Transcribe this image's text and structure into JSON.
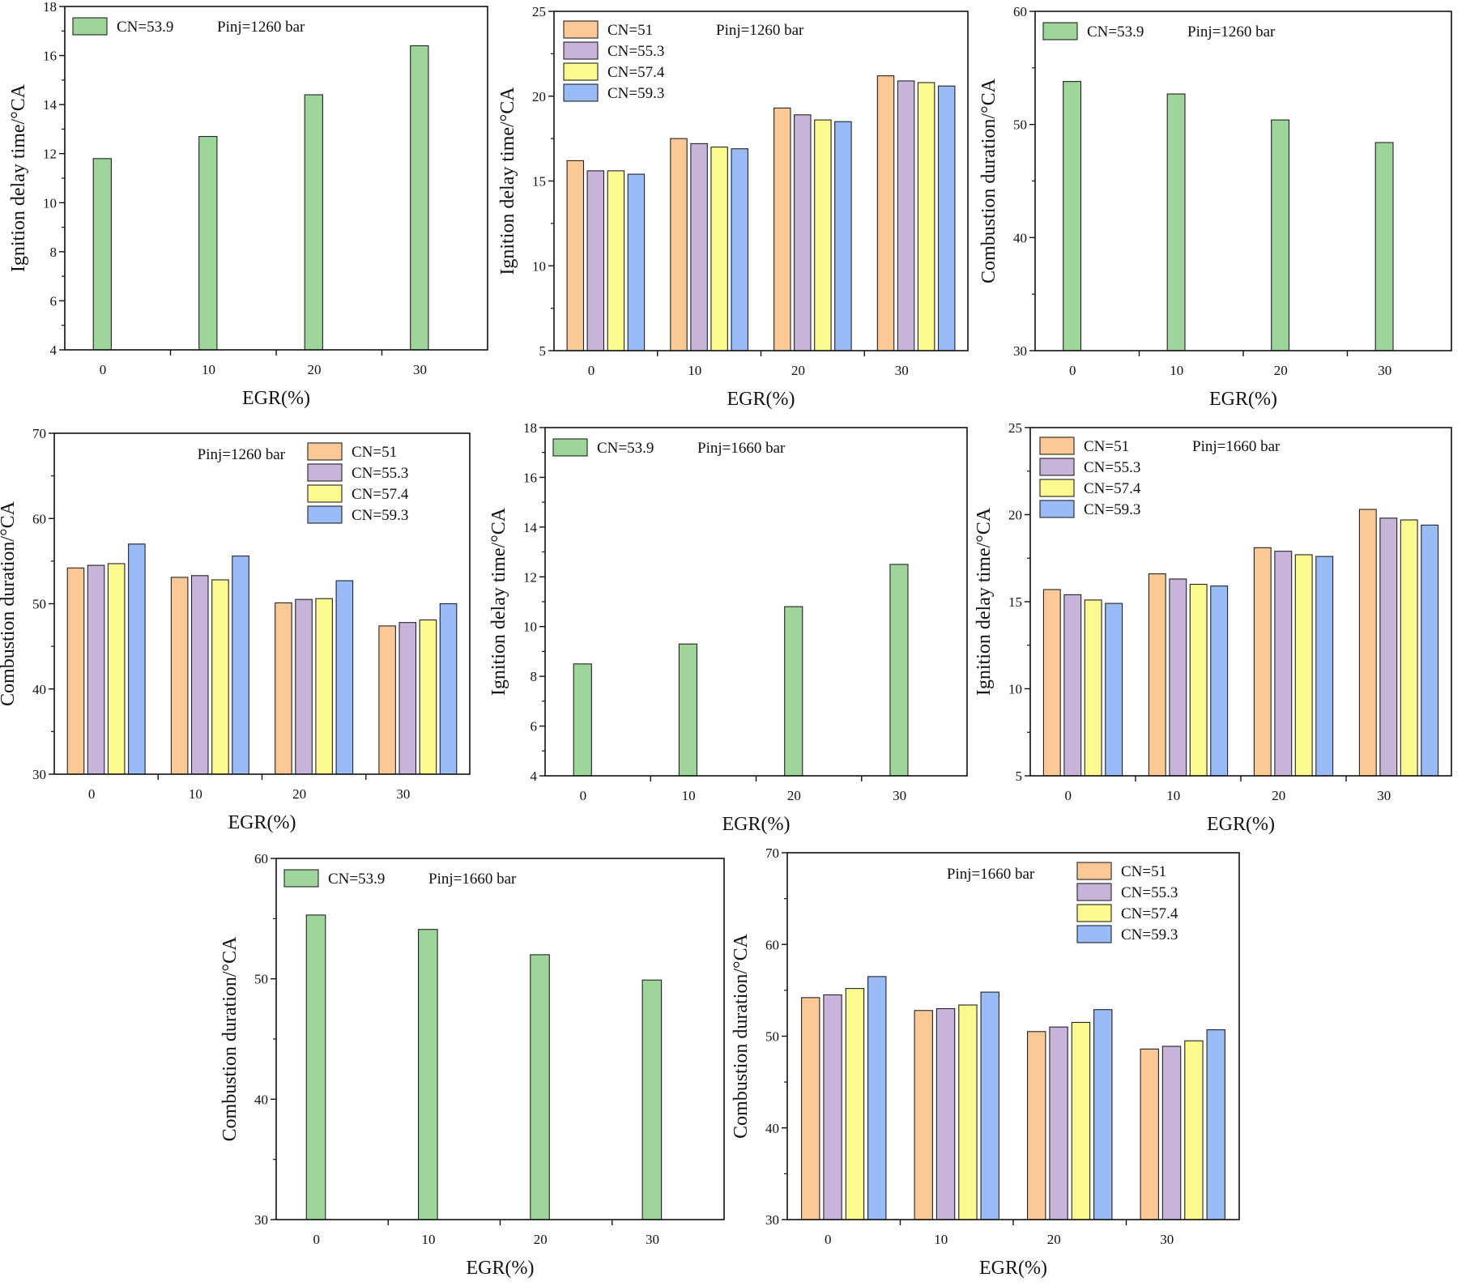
{
  "figure": {
    "description_free": true,
    "colors": {
      "CN=51": "#fcc895",
      "CN=55.3": "#c8b4d9",
      "CN=57.4": "#fbf98f",
      "CN=59.3": "#9abcf6",
      "CN=53.9": "#9dd59a",
      "stroke": "#222222"
    }
  },
  "chart_data": [
    {
      "id": "a",
      "type": "bar",
      "title": "",
      "xlabel": "EGR(%)",
      "ylabel": "Ignition delay time/°CA",
      "categories": [
        "0",
        "10",
        "20",
        "30"
      ],
      "ylim": [
        4,
        18
      ],
      "yticks": [
        4,
        6,
        8,
        10,
        12,
        14,
        16,
        18
      ],
      "series": [
        {
          "name": "CN=53.9",
          "values": [
            11.8,
            12.7,
            14.4,
            16.4
          ]
        }
      ],
      "annotation": "Pinj=1260 bar",
      "legend": "top-left",
      "grid": false
    },
    {
      "id": "b",
      "type": "bar",
      "title": "",
      "xlabel": "EGR(%)",
      "ylabel": "Ignition delay time/°CA",
      "categories": [
        "0",
        "10",
        "20",
        "30"
      ],
      "ylim": [
        5,
        25
      ],
      "yticks": [
        5,
        10,
        15,
        20,
        25
      ],
      "series": [
        {
          "name": "CN=51",
          "values": [
            16.2,
            17.5,
            19.3,
            21.2
          ]
        },
        {
          "name": "CN=55.3",
          "values": [
            15.6,
            17.2,
            18.9,
            20.9
          ]
        },
        {
          "name": "CN=57.4",
          "values": [
            15.6,
            17.0,
            18.6,
            20.8
          ]
        },
        {
          "name": "CN=59.3",
          "values": [
            15.4,
            16.9,
            18.5,
            20.6
          ]
        }
      ],
      "annotation": "Pinj=1260 bar",
      "legend": "top-left",
      "grid": false
    },
    {
      "id": "c",
      "type": "bar",
      "title": "",
      "xlabel": "EGR(%)",
      "ylabel": "Combustion duration/°CA",
      "categories": [
        "0",
        "10",
        "20",
        "30"
      ],
      "ylim": [
        30,
        60
      ],
      "yticks": [
        30,
        40,
        50,
        60
      ],
      "series": [
        {
          "name": "CN=53.9",
          "values": [
            53.8,
            52.7,
            50.4,
            48.4
          ]
        }
      ],
      "annotation": "Pinj=1260 bar",
      "legend": "top-left",
      "grid": false
    },
    {
      "id": "d",
      "type": "bar",
      "title": "",
      "xlabel": "EGR(%)",
      "ylabel": "Combustion duration/°CA",
      "categories": [
        "0",
        "10",
        "20",
        "30"
      ],
      "ylim": [
        30,
        70
      ],
      "yticks": [
        30,
        40,
        50,
        60,
        70
      ],
      "series": [
        {
          "name": "CN=51",
          "values": [
            54.2,
            53.1,
            50.1,
            47.4
          ]
        },
        {
          "name": "CN=55.3",
          "values": [
            54.5,
            53.3,
            50.5,
            47.8
          ]
        },
        {
          "name": "CN=57.4",
          "values": [
            54.7,
            52.8,
            50.6,
            48.1
          ]
        },
        {
          "name": "CN=59.3",
          "values": [
            57.0,
            55.6,
            52.7,
            50.0
          ]
        }
      ],
      "annotation": "Pinj=1260 bar",
      "legend": "top-right",
      "grid": false
    },
    {
      "id": "e",
      "type": "bar",
      "title": "",
      "xlabel": "EGR(%)",
      "ylabel": "Ignition delay time/°CA",
      "categories": [
        "0",
        "10",
        "20",
        "30"
      ],
      "ylim": [
        4,
        18
      ],
      "yticks": [
        4,
        6,
        8,
        10,
        12,
        14,
        16,
        18
      ],
      "series": [
        {
          "name": "CN=53.9",
          "values": [
            8.5,
            9.3,
            10.8,
            12.5
          ]
        }
      ],
      "annotation": "Pinj=1660 bar",
      "legend": "top-left",
      "grid": false
    },
    {
      "id": "f",
      "type": "bar",
      "title": "",
      "xlabel": "EGR(%)",
      "ylabel": "Ignition delay time/°CA",
      "categories": [
        "0",
        "10",
        "20",
        "30"
      ],
      "ylim": [
        5,
        25
      ],
      "yticks": [
        5,
        10,
        15,
        20,
        25
      ],
      "series": [
        {
          "name": "CN=51",
          "values": [
            15.7,
            16.6,
            18.1,
            20.3
          ]
        },
        {
          "name": "CN=55.3",
          "values": [
            15.4,
            16.3,
            17.9,
            19.8
          ]
        },
        {
          "name": "CN=57.4",
          "values": [
            15.1,
            16.0,
            17.7,
            19.7
          ]
        },
        {
          "name": "CN=59.3",
          "values": [
            14.9,
            15.9,
            17.6,
            19.4
          ]
        }
      ],
      "annotation": "Pinj=1660 bar",
      "legend": "top-left",
      "grid": false
    },
    {
      "id": "g",
      "type": "bar",
      "title": "",
      "xlabel": "EGR(%)",
      "ylabel": "Combustion duration/°CA",
      "categories": [
        "0",
        "10",
        "20",
        "30"
      ],
      "ylim": [
        30,
        60
      ],
      "yticks": [
        30,
        40,
        50,
        60
      ],
      "series": [
        {
          "name": "CN=53.9",
          "values": [
            55.3,
            54.1,
            52.0,
            49.9
          ]
        }
      ],
      "annotation": "Pinj=1660 bar",
      "legend": "top-left",
      "grid": false
    },
    {
      "id": "h",
      "type": "bar",
      "title": "",
      "xlabel": "EGR(%)",
      "ylabel": "Combustion duration/°CA",
      "categories": [
        "0",
        "10",
        "20",
        "30"
      ],
      "ylim": [
        30,
        70
      ],
      "yticks": [
        30,
        40,
        50,
        60,
        70
      ],
      "series": [
        {
          "name": "CN=51",
          "values": [
            54.2,
            52.8,
            50.5,
            48.6
          ]
        },
        {
          "name": "CN=55.3",
          "values": [
            54.5,
            53.0,
            51.0,
            48.9
          ]
        },
        {
          "name": "CN=57.4",
          "values": [
            55.2,
            53.4,
            51.5,
            49.5
          ]
        },
        {
          "name": "CN=59.3",
          "values": [
            56.5,
            54.8,
            52.9,
            50.7
          ]
        }
      ],
      "annotation": "Pinj=1660 bar",
      "legend": "top-right",
      "grid": false
    }
  ]
}
